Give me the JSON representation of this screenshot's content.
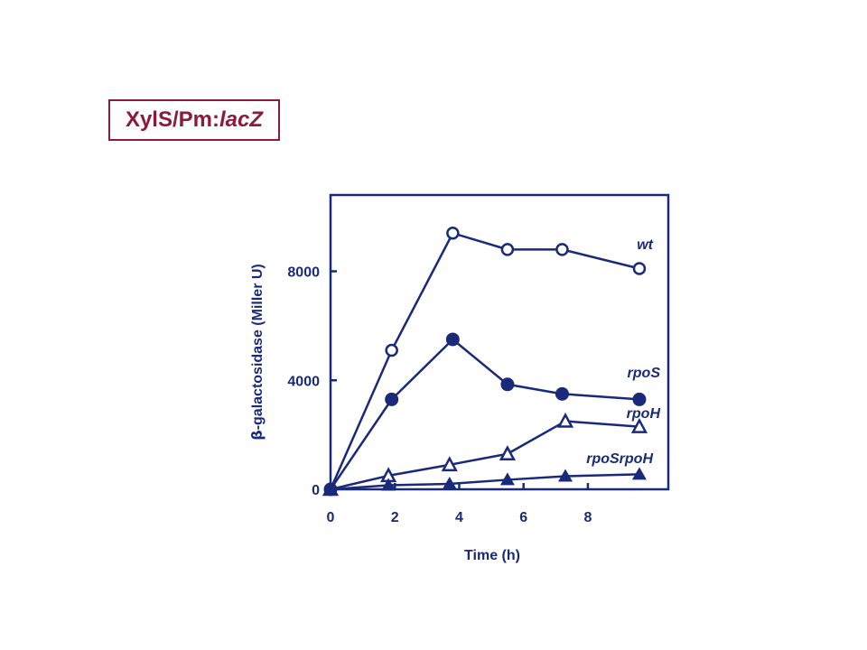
{
  "title": {
    "prefix": "XylS/Pm:",
    "italic": "lacZ"
  },
  "colors": {
    "title": "#8b1a3c",
    "plot": "#1a2a7a"
  },
  "chart_data": {
    "type": "line",
    "xlabel": "Time (h)",
    "ylabel_symbol": "β",
    "ylabel": "-galactosidase (Miller U)",
    "xlim": [
      0,
      10.5
    ],
    "ylim": [
      0,
      10800
    ],
    "xticks": [
      0,
      2,
      4,
      6,
      8
    ],
    "yticks": [
      0,
      4000,
      8000
    ],
    "series": [
      {
        "name": "wt",
        "marker": "open-circle",
        "points": [
          [
            0,
            0
          ],
          [
            1.9,
            5100
          ],
          [
            3.8,
            9400
          ],
          [
            5.5,
            8800
          ],
          [
            7.2,
            8800
          ],
          [
            9.6,
            8100
          ]
        ]
      },
      {
        "name": "rpoS",
        "marker": "filled-circle",
        "points": [
          [
            0,
            0
          ],
          [
            1.9,
            3300
          ],
          [
            3.8,
            5500
          ],
          [
            5.5,
            3850
          ],
          [
            7.2,
            3500
          ],
          [
            9.6,
            3300
          ]
        ]
      },
      {
        "name": "rpoH",
        "marker": "open-triangle",
        "points": [
          [
            0,
            0
          ],
          [
            1.8,
            500
          ],
          [
            3.7,
            900
          ],
          [
            5.5,
            1300
          ],
          [
            7.3,
            2500
          ],
          [
            9.6,
            2300
          ]
        ]
      },
      {
        "name": "rpoSrpoH",
        "marker": "filled-triangle",
        "points": [
          [
            0,
            0
          ],
          [
            1.8,
            150
          ],
          [
            3.7,
            200
          ],
          [
            5.5,
            350
          ],
          [
            7.3,
            480
          ],
          [
            9.6,
            550
          ]
        ]
      }
    ]
  }
}
